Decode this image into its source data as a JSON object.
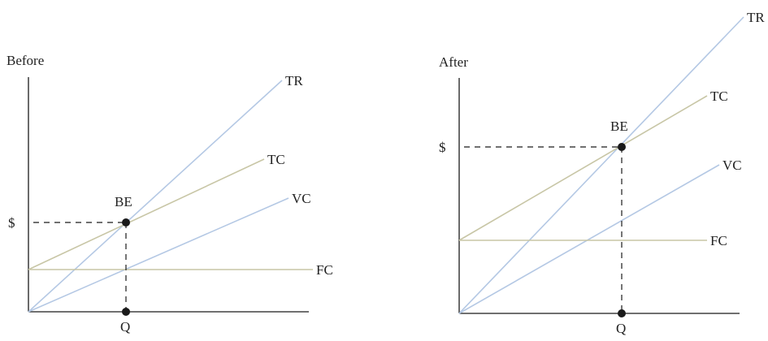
{
  "colors": {
    "revenue": "#b4c8e4",
    "cost": "#c8c6a6",
    "variable": "#b4c8e4",
    "fixed": "#c8c6a6",
    "ink": "#1a1a1a"
  },
  "chart_data": [
    {
      "type": "line",
      "title": "Before",
      "xlabel": "Q",
      "ylabel": "$",
      "xlim": [
        0,
        345
      ],
      "ylim": [
        0,
        290
      ],
      "break_even": {
        "label": "BE",
        "x": 120,
        "y": 110
      },
      "series": [
        {
          "name": "TR",
          "color": "#b4c8e4",
          "points": [
            [
              0,
              0
            ],
            [
              312,
              285
            ]
          ]
        },
        {
          "name": "TC",
          "color": "#c8c6a6",
          "points": [
            [
              0,
              52
            ],
            [
              290,
              188
            ]
          ]
        },
        {
          "name": "VC",
          "color": "#b4c8e4",
          "points": [
            [
              0,
              0
            ],
            [
              320,
              140
            ]
          ]
        },
        {
          "name": "FC",
          "color": "#c8c6a6",
          "points": [
            [
              0,
              52
            ],
            [
              350,
              52
            ]
          ]
        }
      ]
    },
    {
      "type": "line",
      "title": "After",
      "xlabel": "Q",
      "ylabel": "$",
      "xlim": [
        0,
        345
      ],
      "ylim": [
        0,
        290
      ],
      "break_even": {
        "label": "BE",
        "x": 200,
        "y": 205
      },
      "series": [
        {
          "name": "TR",
          "color": "#b4c8e4",
          "points": [
            [
              0,
              0
            ],
            [
              350,
              365
            ]
          ]
        },
        {
          "name": "TC",
          "color": "#c8c6a6",
          "points": [
            [
              0,
              90
            ],
            [
              305,
              268
            ]
          ]
        },
        {
          "name": "VC",
          "color": "#b4c8e4",
          "points": [
            [
              0,
              0
            ],
            [
              320,
              183
            ]
          ]
        },
        {
          "name": "FC",
          "color": "#c8c6a6",
          "points": [
            [
              0,
              90
            ],
            [
              305,
              90
            ]
          ]
        }
      ]
    }
  ]
}
